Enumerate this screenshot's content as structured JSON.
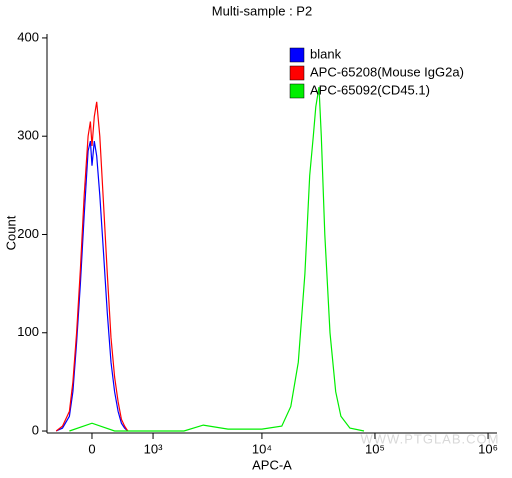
{
  "chart_data": {
    "type": "line",
    "title": "Multi-sample : P2",
    "x_label": "APC-A",
    "y_label": "Count",
    "watermark": "WWW.PTGLAB.COM",
    "xscale": "logicle",
    "legend": "top-right",
    "xlim": [
      -660,
      1200000
    ],
    "ylim": [
      -2,
      404
    ],
    "xticks": [
      0,
      {
        "value": 1000,
        "label": "10³"
      },
      {
        "value": 10000,
        "label": "10⁴"
      },
      {
        "value": 100000,
        "label": "10⁵"
      },
      {
        "value": 1000000,
        "label": "10⁶"
      }
    ],
    "yticks": [
      0,
      100,
      200,
      300,
      400
    ],
    "series": [
      {
        "name": "blank",
        "color": "#0000ff",
        "x": [
          -500,
          -400,
          -300,
          -250,
          -200,
          -150,
          -100,
          -50,
          -20,
          0,
          30,
          60,
          100,
          150,
          200,
          250,
          300,
          350,
          400,
          450,
          500
        ],
        "values": [
          0,
          3,
          15,
          40,
          90,
          150,
          220,
          285,
          295,
          270,
          295,
          280,
          240,
          180,
          120,
          70,
          40,
          20,
          8,
          3,
          0
        ]
      },
      {
        "name": "APC-65208(Mouse IgG2a)",
        "color": "#ff0000",
        "x": [
          -500,
          -400,
          -300,
          -250,
          -200,
          -150,
          -100,
          -50,
          -20,
          0,
          30,
          60,
          100,
          150,
          200,
          250,
          300,
          350,
          400,
          450,
          500
        ],
        "values": [
          0,
          5,
          20,
          50,
          100,
          165,
          240,
          300,
          315,
          290,
          320,
          335,
          300,
          230,
          160,
          95,
          55,
          30,
          12,
          5,
          0
        ]
      },
      {
        "name": "APC-65092(CD45.1)",
        "color": "#00ee00",
        "x": [
          -300,
          0,
          300,
          2000,
          3000,
          5000,
          10000,
          15000,
          18000,
          21000,
          24000,
          26500,
          28500,
          30000,
          32000,
          33500,
          36000,
          40000,
          45000,
          50000,
          60000,
          80000
        ],
        "values": [
          0,
          8,
          0,
          0,
          6,
          2,
          2,
          5,
          25,
          70,
          160,
          260,
          300,
          330,
          350,
          300,
          200,
          100,
          40,
          15,
          3,
          0
        ]
      }
    ]
  }
}
